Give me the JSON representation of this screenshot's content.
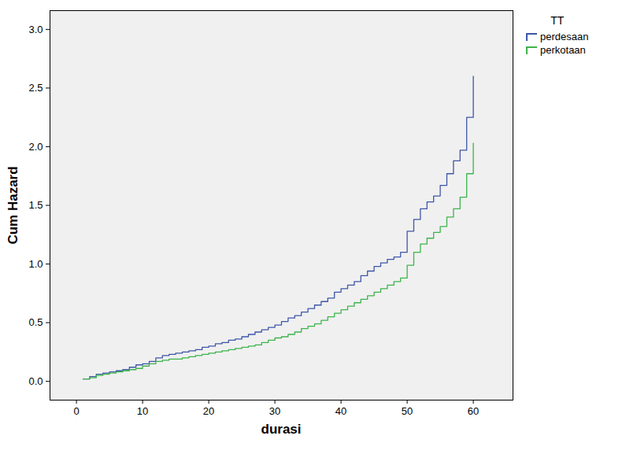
{
  "chart_data": {
    "type": "line",
    "line_style": "step",
    "x_label": "durasi",
    "y_label": "Cum Hazard",
    "legend_title": "TT",
    "legend": "right",
    "grid": false,
    "x": [
      1,
      2,
      3,
      4,
      5,
      6,
      7,
      8,
      9,
      10,
      11,
      12,
      13,
      14,
      15,
      16,
      17,
      18,
      19,
      20,
      21,
      22,
      23,
      24,
      25,
      26,
      27,
      28,
      29,
      30,
      31,
      32,
      33,
      34,
      35,
      36,
      37,
      38,
      39,
      40,
      41,
      42,
      43,
      44,
      45,
      46,
      47,
      48,
      49,
      50,
      51,
      52,
      53,
      54,
      55,
      56,
      57,
      58,
      59,
      60
    ],
    "series": [
      {
        "name": "perdesaan",
        "color": "#3e56a8",
        "values": [
          0.02,
          0.04,
          0.06,
          0.07,
          0.08,
          0.09,
          0.1,
          0.12,
          0.14,
          0.15,
          0.17,
          0.2,
          0.22,
          0.23,
          0.24,
          0.25,
          0.26,
          0.27,
          0.29,
          0.3,
          0.32,
          0.33,
          0.35,
          0.36,
          0.38,
          0.4,
          0.42,
          0.44,
          0.46,
          0.48,
          0.51,
          0.54,
          0.56,
          0.59,
          0.62,
          0.65,
          0.68,
          0.71,
          0.76,
          0.79,
          0.82,
          0.85,
          0.9,
          0.94,
          0.98,
          1.01,
          1.04,
          1.06,
          1.1,
          1.28,
          1.38,
          1.47,
          1.53,
          1.58,
          1.67,
          1.77,
          1.88,
          1.97,
          2.25,
          2.6
        ]
      },
      {
        "name": "perkotaan",
        "color": "#3cb44b",
        "values": [
          0.02,
          0.03,
          0.05,
          0.06,
          0.07,
          0.08,
          0.09,
          0.1,
          0.11,
          0.13,
          0.15,
          0.17,
          0.18,
          0.19,
          0.19,
          0.2,
          0.21,
          0.22,
          0.23,
          0.24,
          0.25,
          0.26,
          0.27,
          0.28,
          0.29,
          0.3,
          0.31,
          0.33,
          0.35,
          0.37,
          0.38,
          0.4,
          0.42,
          0.45,
          0.47,
          0.49,
          0.52,
          0.55,
          0.58,
          0.61,
          0.64,
          0.67,
          0.7,
          0.73,
          0.76,
          0.79,
          0.82,
          0.85,
          0.88,
          0.99,
          1.1,
          1.17,
          1.22,
          1.27,
          1.32,
          1.4,
          1.47,
          1.57,
          1.77,
          2.03
        ]
      }
    ],
    "xlim": [
      -4,
      66
    ],
    "xticks": [
      0,
      10,
      20,
      30,
      40,
      50,
      60
    ],
    "ylim": [
      -0.16,
      3.16
    ],
    "yticks": [
      {
        "value": 0,
        "label": "0.0"
      },
      {
        "value": 0.5,
        "label": "0.5"
      },
      {
        "value": 1,
        "label": "1.0"
      },
      {
        "value": 1.5,
        "label": "1.5"
      },
      {
        "value": 2,
        "label": "2.0"
      },
      {
        "value": 2.5,
        "label": "2.5"
      },
      {
        "value": 3,
        "label": "3.0"
      }
    ]
  }
}
